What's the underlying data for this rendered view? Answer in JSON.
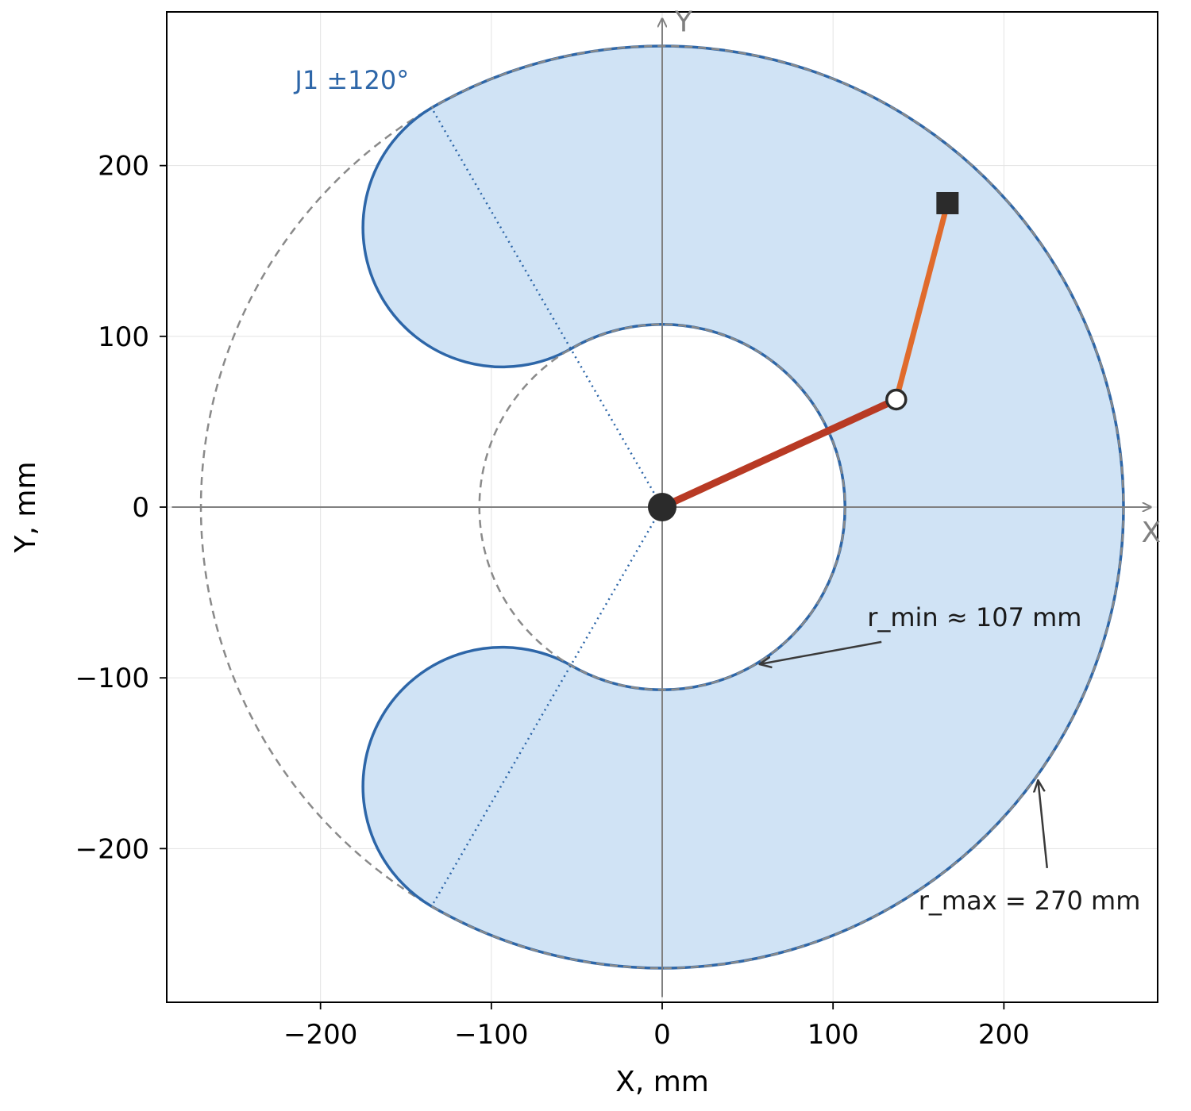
{
  "chart_data": {
    "type": "scatter",
    "xlabel": "X, mm",
    "ylabel": "Y, mm",
    "xlim": [
      -290,
      290
    ],
    "ylim": [
      -290,
      290
    ],
    "x_ticks": [
      -200,
      -100,
      0,
      100,
      200
    ],
    "y_ticks": [
      -200,
      -100,
      0,
      100,
      200
    ],
    "x_tick_labels": [
      "−200",
      "−100",
      "0",
      "100",
      "200"
    ],
    "y_tick_labels": [
      "−200",
      "−100",
      "0",
      "100",
      "200"
    ],
    "grid": true,
    "axis_letters": {
      "x": "X",
      "y": "Y"
    },
    "workspace": {
      "r_min": 107,
      "r_max": 270,
      "joint1_limit_deg": 120,
      "fill_color": "#d0e3f5",
      "edge_color": "#2d66a8"
    },
    "arm": {
      "base": [
        0,
        0
      ],
      "elbow": [
        137,
        63
      ],
      "end_effector": [
        167,
        178
      ],
      "link1_color": "#b83a24",
      "link2_color": "#e06b2c",
      "joint_color": "#2b2b2b"
    },
    "annotations": {
      "joint_limit": "J1 ±120°",
      "r_min": "r_min ≈ 107 mm",
      "r_max": "r_max = 270 mm"
    },
    "annotation_points": {
      "r_min_arrow_target": [
        57,
        -92
      ],
      "r_min_text_anchor": [
        120,
        -65
      ],
      "r_max_arrow_target": [
        220,
        -160
      ],
      "r_max_text_anchor": [
        150,
        -230
      ],
      "joint_limit_text_anchor": [
        -215,
        245
      ]
    }
  }
}
